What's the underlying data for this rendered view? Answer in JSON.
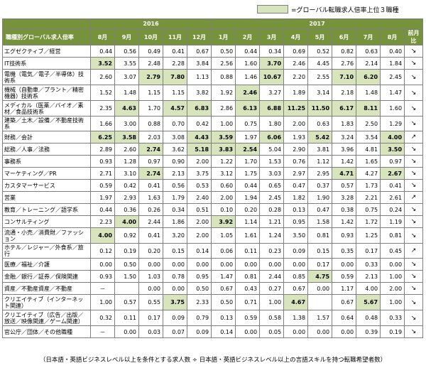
{
  "legend": {
    "label": "=グローバル転職求人倍率上位３職種",
    "highlight_color": "#d8e4bc",
    "header_color": "#76933c"
  },
  "years": [
    "2016",
    "2017"
  ],
  "columns": [
    "職種別グローバル求人倍率",
    "8月",
    "9月",
    "10月",
    "11月",
    "12月",
    "1月",
    "2月",
    "3月",
    "4月",
    "5月",
    "6月",
    "7月",
    "8月",
    "前月比"
  ],
  "rows": [
    {
      "name": "エグゼクティブ／経営",
      "values": [
        "0.44",
        "0.56",
        "0.49",
        "0.41",
        "0.67",
        "0.50",
        "0.44",
        "0.34",
        "0.69",
        "0.52",
        "0.82",
        "0.63",
        "0.40"
      ],
      "hl": [],
      "trend": "down"
    },
    {
      "name": "IT技術系",
      "values": [
        "3.52",
        "3.55",
        "2.48",
        "2.28",
        "3.84",
        "2.56",
        "1.60",
        "3.70",
        "2.46",
        "4.45",
        "2.76",
        "2.14",
        "1.84"
      ],
      "hl": [
        0,
        7
      ],
      "trend": "down"
    },
    {
      "name": "電機（電気／電子／半導体）技術系",
      "values": [
        "2.60",
        "3.07",
        "2.79",
        "7.80",
        "1.13",
        "0.88",
        "1.46",
        "10.67",
        "2.20",
        "2.55",
        "7.10",
        "6.20",
        "2.45"
      ],
      "hl": [
        2,
        3,
        7,
        10,
        11
      ],
      "trend": "down"
    },
    {
      "name": "機械（自動車／プラント／精密機器）技術系",
      "values": [
        "1.52",
        "1.48",
        "1.15",
        "1.15",
        "3.82",
        "1.92",
        "2.46",
        "3.27",
        "1.89",
        "3.14",
        "2.18",
        "1.48",
        "1.47"
      ],
      "hl": [
        6
      ],
      "trend": "down"
    },
    {
      "name": "メディカル（医薬／バイオ／素材／食品技術系",
      "values": [
        "2.35",
        "4.63",
        "1.70",
        "4.57",
        "6.83",
        "2.86",
        "6.13",
        "6.88",
        "11.25",
        "11.50",
        "6.17",
        "8.11",
        "1.60"
      ],
      "hl": [
        1,
        3,
        4,
        6,
        7,
        8,
        9,
        10,
        11
      ],
      "trend": "down"
    },
    {
      "name": "建築／土木／設備／不動産技術系",
      "values": [
        "1.66",
        "3.00",
        "0.88",
        "0.70",
        "0.42",
        "1.00",
        "0.75",
        "1.80",
        "2.00",
        "0.63",
        "1.83",
        "2.50",
        "1.29"
      ],
      "hl": [],
      "trend": "down"
    },
    {
      "name": "財務／会計",
      "values": [
        "6.25",
        "3.58",
        "2.03",
        "3.08",
        "4.43",
        "3.59",
        "1.97",
        "6.06",
        "1.93",
        "5.42",
        "3.24",
        "3.54",
        "4.00"
      ],
      "hl": [
        0,
        1,
        4,
        5,
        7,
        9,
        12
      ],
      "trend": "up"
    },
    {
      "name": "総務／人事／法務",
      "values": [
        "2.89",
        "2.60",
        "2.74",
        "3.62",
        "5.18",
        "3.83",
        "2.54",
        "5.04",
        "2.90",
        "3.81",
        "3.96",
        "4.81",
        "3.50"
      ],
      "hl": [
        2,
        4,
        5,
        6,
        12
      ],
      "trend": "down"
    },
    {
      "name": "事務系",
      "values": [
        "0.93",
        "1.28",
        "0.97",
        "0.90",
        "2.00",
        "1.22",
        "1.70",
        "1.53",
        "0.76",
        "1.12",
        "1.42",
        "1.65",
        "0.97"
      ],
      "hl": [],
      "trend": "down"
    },
    {
      "name": "マーケティング／PR",
      "values": [
        "2.71",
        "3.10",
        "2.74",
        "2.13",
        "3.75",
        "3.12",
        "1.75",
        "3.03",
        "2.97",
        "2.95",
        "4.71",
        "4.27",
        "2.67"
      ],
      "hl": [
        2,
        10,
        12
      ],
      "trend": "down"
    },
    {
      "name": "カスタマーサービス",
      "values": [
        "0.59",
        "0.42",
        "0.41",
        "0.56",
        "0.53",
        "0.60",
        "0.44",
        "0.65",
        "0.47",
        "0.37",
        "0.57",
        "1.73",
        "0.41"
      ],
      "hl": [],
      "trend": "down"
    },
    {
      "name": "営業",
      "values": [
        "1.97",
        "2.93",
        "1.63",
        "1.79",
        "2.40",
        "2.00",
        "1.94",
        "2.45",
        "1.82",
        "1.90",
        "3.28",
        "2.21",
        "2.61"
      ],
      "hl": [],
      "trend": "up"
    },
    {
      "name": "教育／トレーニング／語学系",
      "values": [
        "0.44",
        "0.36",
        "0.26",
        "0.34",
        "0.51",
        "0.10",
        "0.20",
        "0.28",
        "0.13",
        "0.47",
        "0.38",
        "0.75",
        "0.24"
      ],
      "hl": [],
      "trend": "down"
    },
    {
      "name": "コンサルティング",
      "values": [
        "2.23",
        "4.00",
        "2.44",
        "1.86",
        "2.00",
        "3.92",
        "1.14",
        "1.21",
        "0.95",
        "1.58",
        "1.42",
        "1.72",
        "1.19"
      ],
      "hl": [
        1,
        5
      ],
      "trend": "down"
    },
    {
      "name": "流通・小売／消費財／ファッション",
      "values": [
        "4.00",
        "0.92",
        "0.41",
        "3.20",
        "2.00",
        "1.05",
        "1.61",
        "1.24",
        "3.50",
        "0.81",
        "0.93",
        "1.25",
        "0.81"
      ],
      "hl": [
        0
      ],
      "trend": "down"
    },
    {
      "name": "ホテル／レジャー／外食系／旅行",
      "values": [
        "0.12",
        "0.19",
        "0.20",
        "0.15",
        "0.14",
        "0.06",
        "0.11",
        "0.23",
        "0.09",
        "0.15",
        "0.35",
        "0.17",
        "0.45"
      ],
      "hl": [],
      "trend": "up"
    },
    {
      "name": "医療／福祉／介護",
      "values": [
        "0.00",
        "0.50",
        "0.00",
        "0.00",
        "0.00",
        "0.00",
        "0.00",
        "0.00",
        "0.00",
        "0.17",
        "0.00",
        "0.33",
        "0.00"
      ],
      "hl": [],
      "trend": "down"
    },
    {
      "name": "金融／銀行／証券／保険関連",
      "values": [
        "0.93",
        "1.50",
        "1.03",
        "0.78",
        "0.95",
        "1.47",
        "0.81",
        "2.44",
        "0.85",
        "4.75",
        "0.59",
        "2.13",
        "1.00"
      ],
      "hl": [
        9
      ],
      "trend": "down"
    },
    {
      "name": "資産／不動産資産／不動産",
      "values": [
        "－",
        "",
        "0.00",
        "0.00",
        "0.50",
        "0.67",
        "0.43",
        "0.27",
        "0.67",
        "0.00",
        "1.17",
        "4.00",
        "2.00"
      ],
      "hl": [],
      "trend": "down"
    },
    {
      "name": "クリエイティブ（インターネット関連）",
      "values": [
        "1.00",
        "0.57",
        "0.55",
        "3.75",
        "2.33",
        "0.50",
        "0.71",
        "1.00",
        "4.67",
        "",
        "0.67",
        "5.67",
        "1.00"
      ],
      "hl": [
        3,
        8,
        11
      ],
      "trend": "down"
    },
    {
      "name": "クリエイティブ（広告／出版／放送／映像関連／ゲーム関連）",
      "values": [
        "0.32",
        "0.11",
        "0.17",
        "0.09",
        "0.79",
        "0.13",
        "0.59",
        "0.58",
        "1.38",
        "1.57",
        "0.64",
        "0.48",
        "0.33"
      ],
      "hl": [],
      "trend": "down"
    },
    {
      "name": "官公庁／団体／その他職種",
      "values": [
        "－",
        "0.00",
        "0.03",
        "0.07",
        "0.09",
        "0.14",
        "0.00",
        "0.05",
        "0.00",
        "0.00",
        "0.00",
        "0.39",
        "0.19"
      ],
      "hl": [],
      "trend": "down"
    }
  ],
  "footnote": "（日本語・英語ビジネスレベル以上を条件とする求人数 ÷ 日本語・英語ビジネスレベル以上の言語スキルを持つ転職希望者数）"
}
